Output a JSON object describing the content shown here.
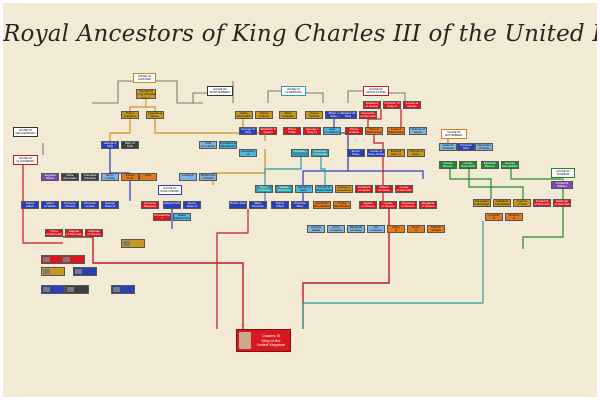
{
  "title": "Royal Ancestors of King Charles III of the United Kingdom",
  "central": {
    "name": "Charles III\nKing of the\nUnited Kingdom"
  },
  "footer": {
    "left": "",
    "right": ""
  },
  "colors": {
    "background": "#f3ead6",
    "gold": "#c7981f",
    "blue": "#2a3fb5",
    "red": "#d7191f",
    "green": "#1e8a30",
    "teal": "#2c9aa7",
    "cyan": "#4cb6df",
    "orange": "#e07a1d",
    "lightblue": "#7eb4de",
    "darkgray": "#3e3e3e",
    "purple": "#7a4ab0",
    "connector_gold": "#c7981f",
    "connector_blue": "#2a3fb5",
    "connector_red": "#c21a20",
    "connector_green": "#1e8a30",
    "connector_teal": "#2c9aa7",
    "connector_gray": "#555555"
  },
  "house_headers": [
    {
      "id": "h1",
      "label": "HOUSE OF\nHANOVER"
    },
    {
      "id": "h2",
      "label": "HOUSE OF\nWÜRTTEMBERG"
    },
    {
      "id": "h3",
      "label": "HOUSE OF\nOLDENBURG"
    },
    {
      "id": "h4",
      "label": "HOUSE OF\nHESSE-KASSEL"
    },
    {
      "id": "h5",
      "label": "HOUSE OF\nSAXE-COBURG"
    },
    {
      "id": "h6",
      "label": "HOUSE OF\nMECKLENBURG"
    },
    {
      "id": "h7",
      "label": "HOUSE OF\nGLÜCKSBURG"
    },
    {
      "id": "h8",
      "label": "HOUSE OF\nBATTENBERG"
    },
    {
      "id": "h9",
      "label": "HOUSE OF\nWINDSOR"
    }
  ],
  "boxes": [
    {
      "id": "b1",
      "label": "George III\nKing of Great Britain",
      "color": "gold"
    },
    {
      "id": "b2",
      "label": "Prince Adolphus\nDuke of Cambridge",
      "color": "gold"
    },
    {
      "id": "b3",
      "label": "Augusta of\nHesse-Kassel",
      "color": "gold"
    },
    {
      "id": "b4",
      "label": "Frederick\nof Hesse-Kassel",
      "color": "red"
    },
    {
      "id": "b5",
      "label": "Christian IX\nKing of Denmark",
      "color": "red"
    },
    {
      "id": "b6",
      "label": "Louise of\nHesse-Kassel",
      "color": "red"
    },
    {
      "id": "b7",
      "label": "Duke Alexander\nof Württemberg",
      "color": "gold"
    },
    {
      "id": "b8",
      "label": "Prince Francis\nDuke of Teck",
      "color": "gold"
    },
    {
      "id": "b9",
      "label": "Mary Adelaide\nof Cambridge",
      "color": "gold"
    },
    {
      "id": "b10",
      "label": "Queen Victoria",
      "color": "gold"
    },
    {
      "id": "b11",
      "label": "Albert of\nSaxe-Coburg",
      "color": "blue"
    },
    {
      "id": "b12",
      "label": "Edward VII\nKing",
      "color": "blue"
    },
    {
      "id": "b13",
      "label": "Alexandra\nof Denmark",
      "color": "red"
    },
    {
      "id": "b14",
      "label": "George V\nKing",
      "color": "blue"
    },
    {
      "id": "b15",
      "label": "Mary of Teck",
      "color": "darkgray"
    },
    {
      "id": "b16",
      "label": "George VI\nKing",
      "color": "blue"
    },
    {
      "id": "b17",
      "label": "Elizabeth II\nQueen",
      "color": "red"
    },
    {
      "id": "b18",
      "label": "Prince Philip\nDuke of Edinburgh",
      "color": "red"
    },
    {
      "id": "b19",
      "label": "George I\nKing of Greece",
      "color": "red"
    },
    {
      "id": "b20",
      "label": "Olga\nConstantinovna",
      "color": "cyan"
    },
    {
      "id": "b21",
      "label": "Prince Andrew\nof Greece",
      "color": "red"
    },
    {
      "id": "b22",
      "label": "Alice of\nBattenberg",
      "color": "orange"
    },
    {
      "id": "b23",
      "label": "Louis of\nBattenberg",
      "color": "orange"
    },
    {
      "id": "b24",
      "label": "Victoria of\nHesse",
      "color": "lightblue"
    },
    {
      "id": "b25",
      "label": "Louis IV\nof Hesse",
      "color": "lightblue"
    },
    {
      "id": "b26",
      "label": "Princess Alice",
      "color": "blue"
    },
    {
      "id": "b27",
      "label": "Alexander\nof Hesse",
      "color": "lightblue"
    },
    {
      "id": "b28",
      "label": "Julia\nvon Hauke",
      "color": "lightblue"
    },
    {
      "id": "b29",
      "label": "Constantine\nNikolaevich",
      "color": "cyan"
    },
    {
      "id": "b30",
      "label": "Alexandra of\nSaxe-Altenburg",
      "color": "cyan"
    },
    {
      "id": "b31",
      "label": "Nicholas I",
      "color": "teal"
    },
    {
      "id": "b32",
      "label": "Charlotte\nof Prussia",
      "color": "teal"
    },
    {
      "id": "b33",
      "label": "Ernst I\nSaxe-Coburg",
      "color": "blue"
    },
    {
      "id": "b34",
      "label": "Louise of\nSaxe-Gotha",
      "color": "blue"
    },
    {
      "id": "b35",
      "label": "Edward\nDuke of Kent",
      "color": "gold"
    },
    {
      "id": "b36",
      "label": "Victoria of\nSaxe-Coburg",
      "color": "gold"
    },
    {
      "id": "b37",
      "label": "Claude\nBowes-Lyon",
      "color": "green"
    },
    {
      "id": "b38",
      "label": "Cecilia\nCavendish",
      "color": "green"
    },
    {
      "id": "b39",
      "label": "Elizabeth\nBowes-Lyon",
      "color": "green"
    },
    {
      "id": "b40",
      "label": "George\nMountbatten",
      "color": "green"
    },
    {
      "id": "b41",
      "label": "Frederick\nWilliam",
      "color": "purple"
    },
    {
      "id": "b42",
      "label": "Augusta\nReuss",
      "color": "purple"
    },
    {
      "id": "b43",
      "label": "Duke Alexander\nof Württemberg",
      "color": "darkgray"
    },
    {
      "id": "b44",
      "label": "Countess Claudine\nRhédey",
      "color": "darkgray"
    },
    {
      "id": "b45",
      "label": "Ernst Ludwig",
      "color": "lightblue"
    },
    {
      "id": "b46",
      "label": "Prince Louis",
      "color": "orange"
    },
    {
      "id": "b47",
      "label": "Alice",
      "color": "orange"
    },
    {
      "id": "b48",
      "label": "Ludwig II",
      "color": "lightblue"
    },
    {
      "id": "b49",
      "label": "Wilhelmine\nof Baden",
      "color": "lightblue"
    },
    {
      "id": "b50",
      "label": "Paul I\nof Russia",
      "color": "teal"
    },
    {
      "id": "b51",
      "label": "Sophie Dorothea",
      "color": "teal"
    },
    {
      "id": "b52",
      "label": "Joseph of\nSaxe-Altenburg",
      "color": "cyan"
    },
    {
      "id": "b53",
      "label": "Amelia of\nWürttemberg",
      "color": "cyan"
    },
    {
      "id": "b54",
      "label": "George V\nof Hanover",
      "color": "gold"
    },
    {
      "id": "b55",
      "label": "Frederick\nof Hesse",
      "color": "red"
    },
    {
      "id": "b56",
      "label": "William\nof Hesse",
      "color": "red"
    },
    {
      "id": "b57",
      "label": "Louise\nof Denmark",
      "color": "red"
    },
    {
      "id": "b58",
      "label": "Prince Albert\nVictor",
      "color": "blue"
    },
    {
      "id": "b59",
      "label": "Maud\nof Wales",
      "color": "blue"
    },
    {
      "id": "b60",
      "label": "Princess\nVictoria",
      "color": "blue"
    },
    {
      "id": "b61",
      "label": "Princess\nLouise",
      "color": "blue"
    },
    {
      "id": "b62",
      "label": "George\nDuke of Kent",
      "color": "blue"
    },
    {
      "id": "b63",
      "label": "Princess\nMargaret",
      "color": "red"
    },
    {
      "id": "b64",
      "label": "Edward VIII",
      "color": "blue"
    },
    {
      "id": "b65",
      "label": "Henry\nDuke of Gloucester",
      "color": "blue"
    },
    {
      "id": "b66",
      "label": "Prince John",
      "color": "blue"
    },
    {
      "id": "b67",
      "label": "Mary Princess\nRoyal",
      "color": "blue"
    },
    {
      "id": "b68",
      "label": "Prince Albert",
      "color": "blue"
    },
    {
      "id": "b69",
      "label": "Princess\nMary",
      "color": "blue"
    },
    {
      "id": "b70",
      "label": "Alexander\nMountbatten",
      "color": "orange"
    },
    {
      "id": "b71",
      "label": "Louise\nMountbatten",
      "color": "orange"
    },
    {
      "id": "b72",
      "label": "Sophie\nof Greece",
      "color": "red"
    },
    {
      "id": "b73",
      "label": "Cecilie\nof Greece",
      "color": "red"
    },
    {
      "id": "b74",
      "label": "Theodora\nof Greece",
      "color": "red"
    },
    {
      "id": "b75",
      "label": "Margarita\nof Greece",
      "color": "red"
    },
    {
      "id": "b76",
      "label": "Alexander\nCambridge",
      "color": "gold"
    },
    {
      "id": "b77",
      "label": "Adolphus\nCambridge",
      "color": "gold"
    },
    {
      "id": "b78",
      "label": "Francis\nof Teck",
      "color": "gold"
    },
    {
      "id": "b79",
      "label": "Frederick\nof Denmark",
      "color": "red"
    },
    {
      "id": "b80",
      "label": "Valdemar\nof Denmark",
      "color": "red"
    },
    {
      "id": "b81",
      "label": "Thyra\nof Denmark",
      "color": "red"
    },
    {
      "id": "b82",
      "label": "Dagmar\nof Denmark",
      "color": "red"
    },
    {
      "id": "b83",
      "label": "Nicholas\nof Greece",
      "color": "red"
    },
    {
      "id": "b84",
      "label": "Constantine I\nof Greece",
      "color": "red"
    },
    {
      "id": "b85",
      "label": "Elena\nVladimirovna",
      "color": "cyan"
    },
    {
      "id": "b86",
      "label": "Victoria\nMelita",
      "color": "lightblue"
    },
    {
      "id": "b87",
      "label": "Irene\nof Hesse",
      "color": "lightblue"
    },
    {
      "id": "b88",
      "label": "Elisabeth\nof Hesse",
      "color": "lightblue"
    },
    {
      "id": "b89",
      "label": "Alix\nof Hesse",
      "color": "lightblue"
    },
    {
      "id": "b90",
      "label": "Marie\nof Battenberg",
      "color": "orange"
    },
    {
      "id": "b91",
      "label": "Henry\nof Battenberg",
      "color": "orange"
    },
    {
      "id": "b92",
      "label": "Francis Joseph\nof Battenberg",
      "color": "orange"
    },
    {
      "id": "b93",
      "label": "Leopold\nof Battenberg",
      "color": "orange"
    },
    {
      "id": "b94",
      "label": "Maurice\nof Battenberg",
      "color": "orange"
    }
  ],
  "notes": [
    {
      "id": "n1",
      "text": ""
    },
    {
      "id": "n2",
      "text": ""
    },
    {
      "id": "n3",
      "text": ""
    },
    {
      "id": "n4",
      "text": ""
    },
    {
      "id": "n5",
      "text": ""
    },
    {
      "id": "n6",
      "text": ""
    },
    {
      "id": "n7",
      "text": ""
    },
    {
      "id": "n8",
      "text": ""
    },
    {
      "id": "n9",
      "text": ""
    }
  ]
}
